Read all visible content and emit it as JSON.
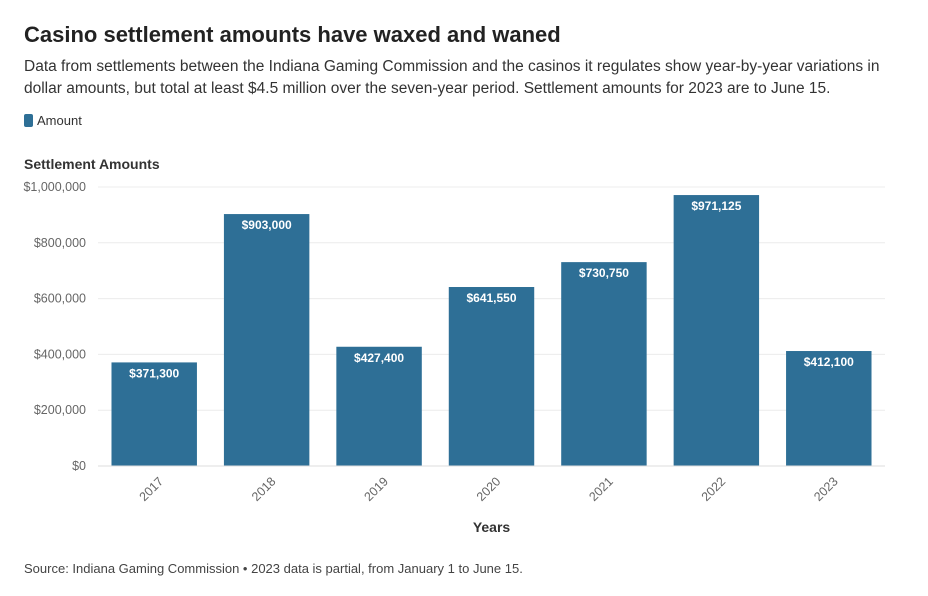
{
  "header": {
    "title": "Casino settlement amounts have waxed and waned",
    "subtitle": "Data from settlements between the Indiana Gaming Commission and the casinos it regulates show year-by-year variations in dollar amounts, but total at least $4.5 million over the seven-year period. Settlement amounts for 2023 are to June 15."
  },
  "footer": {
    "source": "Source: Indiana Gaming Commission • 2023 data is partial, from January 1 to June 15."
  },
  "colors": {
    "bar": "#2e6f96",
    "grid": "#ececec"
  },
  "chart_data": {
    "type": "bar",
    "title": "Settlement Amounts",
    "xlabel": "Years",
    "ylabel": "Settlement Amounts",
    "legend": [
      "Amount"
    ],
    "legend_position": "top-left",
    "categories": [
      "2017",
      "2018",
      "2019",
      "2020",
      "2021",
      "2022",
      "2023"
    ],
    "series": [
      {
        "name": "Amount",
        "values": [
          371300,
          903000,
          427400,
          641550,
          730750,
          971125,
          412100
        ],
        "labels": [
          "$371,300",
          "$903,000",
          "$427,400",
          "$641,550",
          "$730,750",
          "$971,125",
          "$412,100"
        ]
      }
    ],
    "ylim": [
      0,
      1000000
    ],
    "yticks": [
      0,
      200000,
      400000,
      600000,
      800000,
      1000000
    ],
    "ytick_labels": [
      "$0",
      "$200,000",
      "$400,000",
      "$600,000",
      "$800,000",
      "$1,000,000"
    ],
    "grid": true
  }
}
